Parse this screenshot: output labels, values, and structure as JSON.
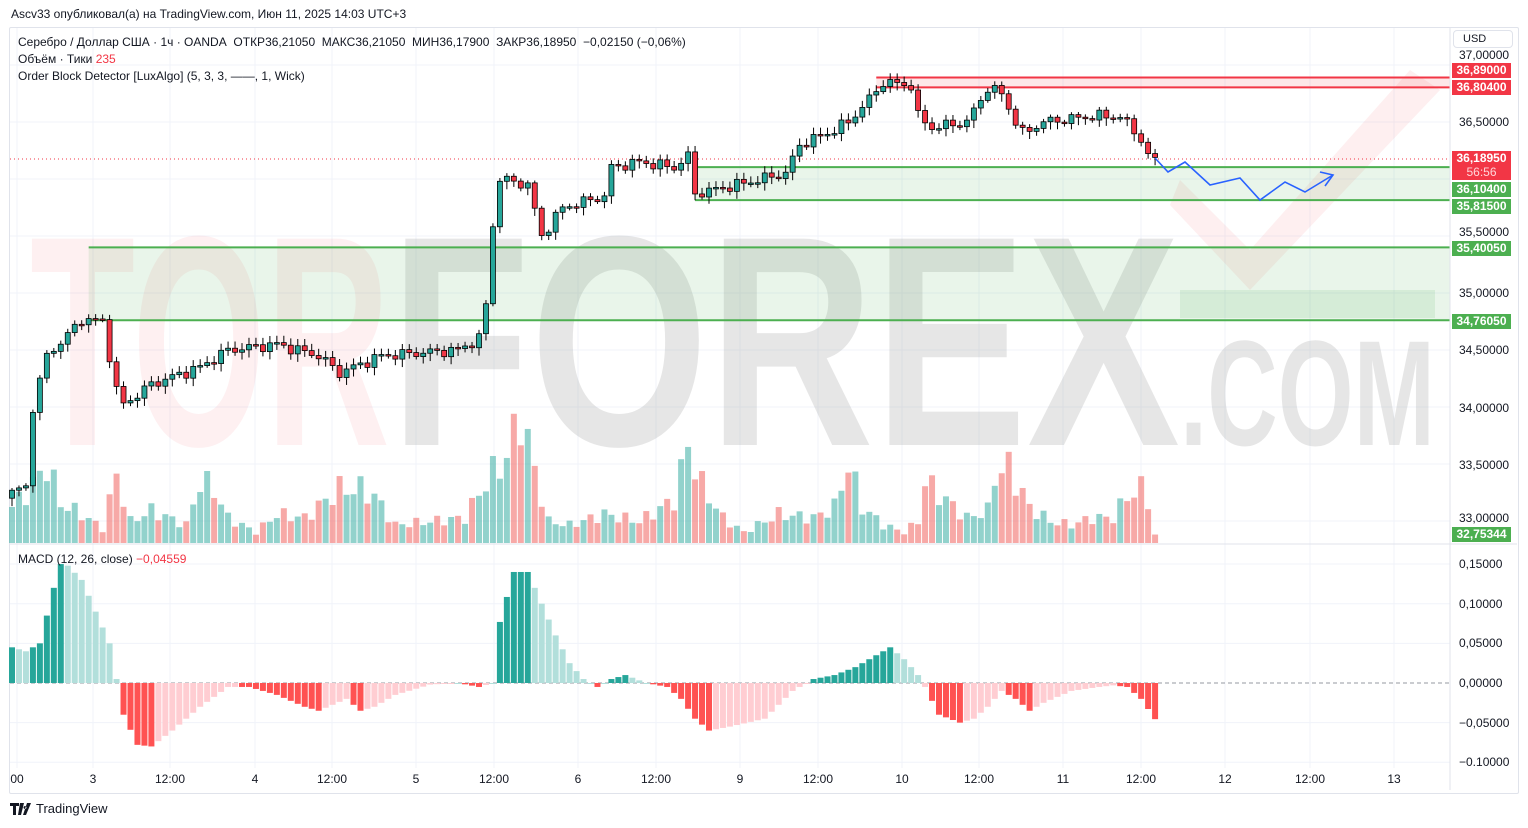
{
  "publisher_line": "Ascv33 опубликовал(а) на TradingView.com, Июн 11, 2025 14:03 UTC+3",
  "legend": {
    "symbol": "Серебро / Доллар США · 1ч · OANDA",
    "open": "ОТКР36,21050",
    "high": "МАКС36,21050",
    "low": "МИН36,17900",
    "close": "ЗАКР36,18950",
    "change": "−0,02150 (−0,06%)",
    "volume_label": "Объём · Тики",
    "volume_value": "235",
    "indicator": "Order Block Detector [LuxAlgo] (5, 3, 3, ——, 1, Wick)",
    "macd_label": "MACD (12, 26, close)",
    "macd_value": "−0,04559"
  },
  "currency": "USD",
  "price_axis": [
    "37,00000",
    "36,50000",
    "35,50000",
    "35,00000",
    "34,50000",
    "34,00000",
    "33,50000",
    "33,00000"
  ],
  "price_tags": [
    {
      "text": "36,89000",
      "color": "#f23645"
    },
    {
      "text": "36,80400",
      "color": "#f23645"
    },
    {
      "text": "36,18950",
      "color": "#f23645"
    },
    {
      "text": "56:56",
      "color": "#f23645"
    },
    {
      "text": "36,10400",
      "color": "#4caf50"
    },
    {
      "text": "35,81500",
      "color": "#4caf50"
    },
    {
      "text": "35,40050",
      "color": "#4caf50"
    },
    {
      "text": "34,76050",
      "color": "#4caf50"
    },
    {
      "text": "32,75344",
      "color": "#4caf50"
    }
  ],
  "macd_axis": [
    "0,15000",
    "0,10000",
    "0,05000",
    "0,00000",
    "−0,05000",
    "−0.10000"
  ],
  "time_axis": [
    "00",
    "3",
    "12:00",
    "4",
    "12:00",
    "5",
    "12:00",
    "6",
    "12:00",
    "9",
    "12:00",
    "10",
    "12:00",
    "11",
    "12:00",
    "12",
    "12:00",
    "13"
  ],
  "watermark": {
    "part1": "TOR",
    "part2": "FOREX",
    ".com": ".COM"
  },
  "footer_brand": "TradingView",
  "colors": {
    "up": "#26a69a",
    "down": "#f23645",
    "zone_green": "#4caf50",
    "zone_red": "#f23645",
    "projection": "#2962ff"
  },
  "chart_data": {
    "type": "candlestick",
    "bars": 165,
    "close_keypoints": [
      [
        0,
        33.25
      ],
      [
        2,
        33.3
      ],
      [
        3,
        34.0
      ],
      [
        5,
        34.45
      ],
      [
        8,
        34.63
      ],
      [
        10,
        34.77
      ],
      [
        13,
        34.75
      ],
      [
        15,
        34.15
      ],
      [
        16,
        34.02
      ],
      [
        20,
        34.2
      ],
      [
        27,
        34.35
      ],
      [
        31,
        34.5
      ],
      [
        38,
        34.55
      ],
      [
        44,
        34.45
      ],
      [
        47,
        34.3
      ],
      [
        53,
        34.45
      ],
      [
        64,
        34.5
      ],
      [
        67,
        34.6
      ],
      [
        68,
        34.9
      ],
      [
        69,
        35.6
      ],
      [
        70,
        36.0
      ],
      [
        74,
        35.95
      ],
      [
        76,
        35.5
      ],
      [
        79,
        35.75
      ],
      [
        85,
        35.85
      ],
      [
        86,
        36.1
      ],
      [
        90,
        36.15
      ],
      [
        95,
        36.1
      ],
      [
        97,
        36.2
      ],
      [
        98,
        35.87
      ],
      [
        104,
        35.95
      ],
      [
        111,
        36.05
      ],
      [
        113,
        36.3
      ],
      [
        117,
        36.4
      ],
      [
        120,
        36.5
      ],
      [
        123,
        36.7
      ],
      [
        125,
        36.85
      ],
      [
        129,
        36.82
      ],
      [
        130,
        36.55
      ],
      [
        132,
        36.45
      ],
      [
        137,
        36.5
      ],
      [
        140,
        36.8
      ],
      [
        142,
        36.75
      ],
      [
        144,
        36.5
      ],
      [
        145,
        36.4
      ],
      [
        148,
        36.5
      ],
      [
        155,
        36.55
      ],
      [
        159,
        36.55
      ],
      [
        162,
        36.35
      ],
      [
        163,
        36.2
      ],
      [
        164,
        36.1895
      ]
    ],
    "volume_keypoints": [
      [
        0,
        1000
      ],
      [
        3,
        1600
      ],
      [
        5,
        2200
      ],
      [
        7,
        1100
      ],
      [
        10,
        800
      ],
      [
        13,
        400
      ],
      [
        15,
        1900
      ],
      [
        17,
        600
      ],
      [
        20,
        900
      ],
      [
        25,
        500
      ],
      [
        27,
        1700
      ],
      [
        29,
        1500
      ],
      [
        31,
        700
      ],
      [
        35,
        300
      ],
      [
        38,
        800
      ],
      [
        42,
        700
      ],
      [
        47,
        1500
      ],
      [
        50,
        1500
      ],
      [
        52,
        1300
      ],
      [
        55,
        500
      ],
      [
        60,
        600
      ],
      [
        65,
        700
      ],
      [
        68,
        1700
      ],
      [
        71,
        2400
      ],
      [
        73,
        3600
      ],
      [
        75,
        2000
      ],
      [
        77,
        600
      ],
      [
        80,
        500
      ],
      [
        85,
        800
      ],
      [
        90,
        600
      ],
      [
        95,
        1200
      ],
      [
        97,
        2700
      ],
      [
        99,
        1600
      ],
      [
        102,
        700
      ],
      [
        105,
        300
      ],
      [
        110,
        800
      ],
      [
        115,
        700
      ],
      [
        118,
        1000
      ],
      [
        120,
        2200
      ],
      [
        122,
        1000
      ],
      [
        125,
        500
      ],
      [
        128,
        300
      ],
      [
        130,
        600
      ],
      [
        131,
        1700
      ],
      [
        134,
        1200
      ],
      [
        137,
        700
      ],
      [
        140,
        900
      ],
      [
        141,
        1900
      ],
      [
        143,
        2100
      ],
      [
        146,
        1000
      ],
      [
        149,
        600
      ],
      [
        152,
        500
      ],
      [
        155,
        700
      ],
      [
        158,
        700
      ],
      [
        160,
        1300
      ],
      [
        162,
        1500
      ],
      [
        163,
        1200
      ],
      [
        164,
        235
      ]
    ],
    "macd_keypoints": [
      [
        0,
        0.045
      ],
      [
        2,
        0.04
      ],
      [
        4,
        0.05
      ],
      [
        6,
        0.12
      ],
      [
        7,
        0.15
      ],
      [
        8,
        0.148
      ],
      [
        10,
        0.13
      ],
      [
        12,
        0.09
      ],
      [
        14,
        0.05
      ],
      [
        15,
        0.005
      ],
      [
        16,
        -0.04
      ],
      [
        18,
        -0.078
      ],
      [
        20,
        -0.08
      ],
      [
        23,
        -0.06
      ],
      [
        27,
        -0.03
      ],
      [
        31,
        -0.005
      ],
      [
        34,
        -0.005
      ],
      [
        38,
        -0.015
      ],
      [
        42,
        -0.03
      ],
      [
        44,
        -0.035
      ],
      [
        48,
        -0.02
      ],
      [
        50,
        -0.035
      ],
      [
        52,
        -0.03
      ],
      [
        55,
        -0.015
      ],
      [
        60,
        -0.002
      ],
      [
        64,
        0.0
      ],
      [
        67,
        -0.005
      ],
      [
        69,
        0.0
      ],
      [
        70,
        0.077
      ],
      [
        72,
        0.14
      ],
      [
        74,
        0.14
      ],
      [
        76,
        0.1
      ],
      [
        78,
        0.06
      ],
      [
        80,
        0.025
      ],
      [
        82,
        0.005
      ],
      [
        84,
        -0.005
      ],
      [
        86,
        0.005
      ],
      [
        88,
        0.01
      ],
      [
        91,
        0.0
      ],
      [
        94,
        -0.005
      ],
      [
        96,
        -0.02
      ],
      [
        98,
        -0.045
      ],
      [
        100,
        -0.06
      ],
      [
        103,
        -0.055
      ],
      [
        108,
        -0.045
      ],
      [
        112,
        -0.01
      ],
      [
        115,
        0.005
      ],
      [
        118,
        0.01
      ],
      [
        121,
        0.02
      ],
      [
        124,
        0.035
      ],
      [
        126,
        0.045
      ],
      [
        128,
        0.03
      ],
      [
        130,
        0.01
      ],
      [
        131,
        -0.005
      ],
      [
        133,
        -0.04
      ],
      [
        136,
        -0.05
      ],
      [
        138,
        -0.045
      ],
      [
        140,
        -0.03
      ],
      [
        142,
        -0.01
      ],
      [
        144,
        -0.02
      ],
      [
        146,
        -0.035
      ],
      [
        148,
        -0.025
      ],
      [
        152,
        -0.01
      ],
      [
        156,
        -0.005
      ],
      [
        158,
        -0.003
      ],
      [
        160,
        -0.005
      ],
      [
        162,
        -0.02
      ],
      [
        164,
        -0.04559
      ]
    ],
    "order_blocks": [
      {
        "type": "bearish",
        "top": 36.89,
        "bottom": 36.804,
        "start_bar": 124
      },
      {
        "type": "bullish",
        "top": 36.104,
        "bottom": 35.815,
        "start_bar": 98
      },
      {
        "type": "bullish",
        "top": 35.4005,
        "bottom": 34.7605,
        "start_bar": 11
      }
    ],
    "current_price": 36.1895,
    "ylim": [
      32.7,
      37.1
    ],
    "macd_ylim": [
      -0.11,
      0.17
    ]
  }
}
